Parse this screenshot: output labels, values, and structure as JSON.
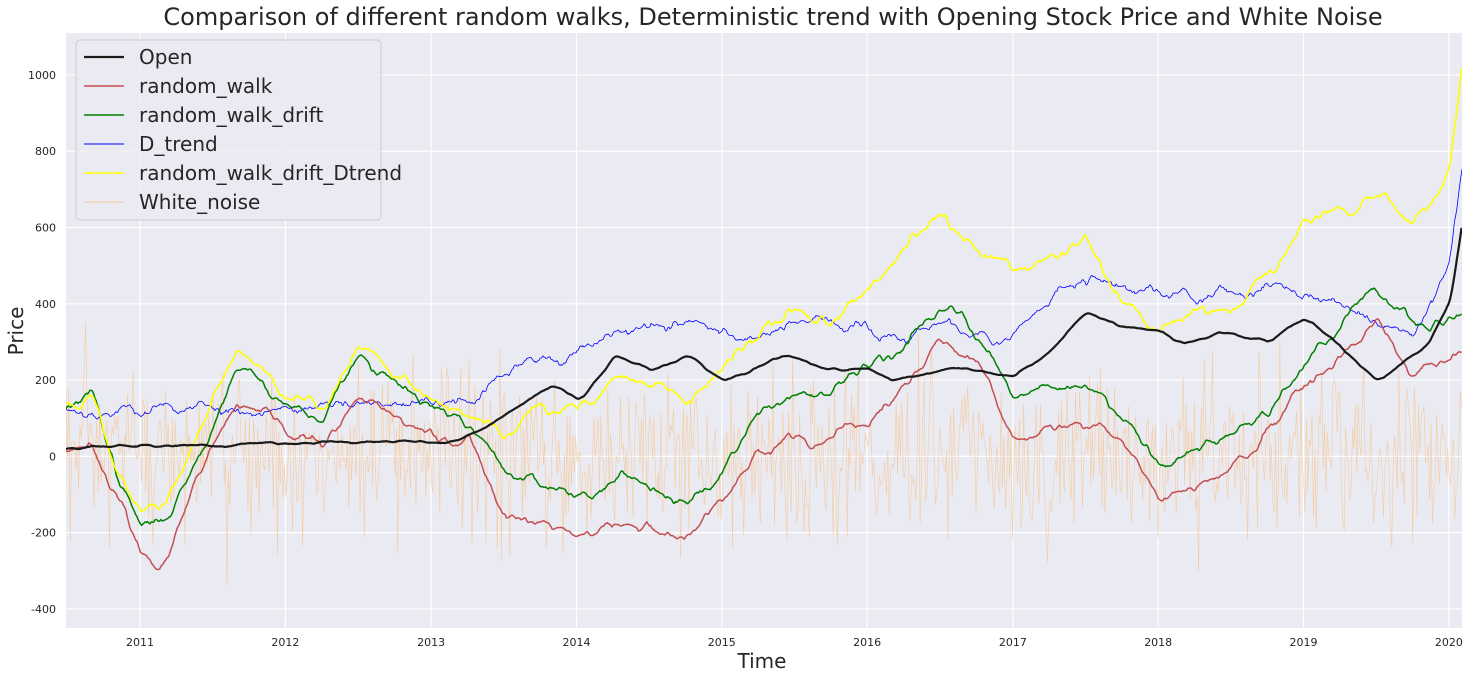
{
  "chart_data": {
    "type": "line",
    "title": "Comparison of different random walks, Deterministic trend with Opening Stock Price and White Noise",
    "xlabel": "Time",
    "ylabel": "Price",
    "x_range": [
      "2010-06-29",
      "2020-02-03"
    ],
    "ylim": [
      -450,
      1110
    ],
    "x_ticks": [
      "2011",
      "2012",
      "2013",
      "2014",
      "2015",
      "2016",
      "2017",
      "2018",
      "2019",
      "2020"
    ],
    "y_ticks": [
      -400,
      -200,
      0,
      200,
      400,
      600,
      800,
      1000
    ],
    "grid": true,
    "background": "#eaeaf2",
    "legend_position": "top-left",
    "series": [
      {
        "name": "Open",
        "color": "#1a1a1a",
        "points": [
          [
            "2010-06-29",
            20
          ],
          [
            "2010-10-01",
            25
          ],
          [
            "2010-11-01",
            35
          ],
          [
            "2011-01-01",
            30
          ],
          [
            "2011-06-01",
            28
          ],
          [
            "2012-01-01",
            35
          ],
          [
            "2012-06-01",
            38
          ],
          [
            "2013-01-01",
            35
          ],
          [
            "2013-03-15",
            45
          ],
          [
            "2013-06-01",
            90
          ],
          [
            "2013-09-01",
            160
          ],
          [
            "2013-11-01",
            190
          ],
          [
            "2014-01-01",
            150
          ],
          [
            "2014-04-01",
            260
          ],
          [
            "2014-07-01",
            220
          ],
          [
            "2014-10-01",
            270
          ],
          [
            "2015-01-01",
            200
          ],
          [
            "2015-03-01",
            220
          ],
          [
            "2015-06-01",
            270
          ],
          [
            "2015-09-01",
            230
          ],
          [
            "2016-01-01",
            230
          ],
          [
            "2016-03-01",
            200
          ],
          [
            "2016-06-01",
            220
          ],
          [
            "2016-09-01",
            230
          ],
          [
            "2017-01-01",
            210
          ],
          [
            "2017-04-01",
            280
          ],
          [
            "2017-07-01",
            380
          ],
          [
            "2017-10-01",
            340
          ],
          [
            "2018-01-01",
            330
          ],
          [
            "2018-03-01",
            290
          ],
          [
            "2018-06-01",
            330
          ],
          [
            "2018-10-01",
            300
          ],
          [
            "2019-01-01",
            360
          ],
          [
            "2019-04-01",
            290
          ],
          [
            "2019-07-01",
            200
          ],
          [
            "2019-10-01",
            260
          ],
          [
            "2019-11-15",
            310
          ],
          [
            "2020-01-01",
            420
          ],
          [
            "2020-02-03",
            660
          ]
        ]
      },
      {
        "name": "random_walk",
        "color": "#c44e52",
        "points": [
          [
            "2010-06-29",
            20
          ],
          [
            "2010-09-01",
            40
          ],
          [
            "2010-11-01",
            -100
          ],
          [
            "2011-01-01",
            -260
          ],
          [
            "2011-03-01",
            -280
          ],
          [
            "2011-06-01",
            -50
          ],
          [
            "2011-09-01",
            130
          ],
          [
            "2012-01-01",
            60
          ],
          [
            "2012-04-01",
            30
          ],
          [
            "2012-07-01",
            140
          ],
          [
            "2012-10-01",
            90
          ],
          [
            "2013-01-01",
            60
          ],
          [
            "2013-04-01",
            50
          ],
          [
            "2013-07-01",
            -150
          ],
          [
            "2013-10-01",
            -180
          ],
          [
            "2014-01-01",
            -210
          ],
          [
            "2014-04-01",
            -180
          ],
          [
            "2014-07-01",
            -190
          ],
          [
            "2014-10-01",
            -220
          ],
          [
            "2015-01-01",
            -120
          ],
          [
            "2015-04-01",
            20
          ],
          [
            "2015-07-01",
            60
          ],
          [
            "2015-10-01",
            40
          ],
          [
            "2016-01-01",
            90
          ],
          [
            "2016-04-01",
            180
          ],
          [
            "2016-07-01",
            310
          ],
          [
            "2016-10-01",
            220
          ],
          [
            "2017-01-01",
            40
          ],
          [
            "2017-04-01",
            70
          ],
          [
            "2017-07-01",
            60
          ],
          [
            "2017-10-01",
            50
          ],
          [
            "2018-01-01",
            -100
          ],
          [
            "2018-04-01",
            -90
          ],
          [
            "2018-07-01",
            -40
          ],
          [
            "2018-10-01",
            50
          ],
          [
            "2019-01-01",
            180
          ],
          [
            "2019-04-01",
            220
          ],
          [
            "2019-07-01",
            340
          ],
          [
            "2019-10-01",
            200
          ],
          [
            "2020-02-03",
            270
          ]
        ]
      },
      {
        "name": "random_walk_drift",
        "color": "#008000",
        "points": [
          [
            "2010-06-29",
            130
          ],
          [
            "2010-09-01",
            160
          ],
          [
            "2010-11-01",
            -50
          ],
          [
            "2011-01-01",
            -190
          ],
          [
            "2011-03-01",
            -170
          ],
          [
            "2011-06-01",
            20
          ],
          [
            "2011-09-01",
            250
          ],
          [
            "2012-01-01",
            140
          ],
          [
            "2012-04-01",
            100
          ],
          [
            "2012-07-01",
            260
          ],
          [
            "2012-10-01",
            180
          ],
          [
            "2013-01-01",
            120
          ],
          [
            "2013-04-01",
            80
          ],
          [
            "2013-07-01",
            -40
          ],
          [
            "2013-10-01",
            -70
          ],
          [
            "2014-01-01",
            -100
          ],
          [
            "2014-04-01",
            -60
          ],
          [
            "2014-07-01",
            -70
          ],
          [
            "2014-10-01",
            -110
          ],
          [
            "2015-01-01",
            -20
          ],
          [
            "2015-04-01",
            130
          ],
          [
            "2015-07-01",
            170
          ],
          [
            "2015-10-01",
            150
          ],
          [
            "2016-01-01",
            230
          ],
          [
            "2016-04-01",
            300
          ],
          [
            "2016-07-01",
            410
          ],
          [
            "2016-10-01",
            330
          ],
          [
            "2017-01-01",
            160
          ],
          [
            "2017-04-01",
            200
          ],
          [
            "2017-07-01",
            180
          ],
          [
            "2017-10-01",
            120
          ],
          [
            "2018-01-01",
            0
          ],
          [
            "2018-04-01",
            20
          ],
          [
            "2018-07-01",
            50
          ],
          [
            "2018-10-01",
            120
          ],
          [
            "2019-01-01",
            260
          ],
          [
            "2019-04-01",
            340
          ],
          [
            "2019-07-01",
            460
          ],
          [
            "2019-10-01",
            330
          ],
          [
            "2020-02-03",
            360
          ]
        ]
      },
      {
        "name": "D_trend",
        "color": "#0000ff",
        "points": [
          [
            "2010-06-29",
            120
          ],
          [
            "2011-01-01",
            125
          ],
          [
            "2011-06-01",
            125
          ],
          [
            "2012-01-01",
            130
          ],
          [
            "2012-06-01",
            125
          ],
          [
            "2013-01-01",
            130
          ],
          [
            "2013-04-01",
            150
          ],
          [
            "2013-08-01",
            230
          ],
          [
            "2013-12-01",
            260
          ],
          [
            "2014-04-01",
            340
          ],
          [
            "2014-10-01",
            350
          ],
          [
            "2015-03-01",
            310
          ],
          [
            "2015-07-01",
            360
          ],
          [
            "2015-11-01",
            340
          ],
          [
            "2016-03-01",
            300
          ],
          [
            "2016-07-01",
            350
          ],
          [
            "2016-11-01",
            300
          ],
          [
            "2017-03-01",
            380
          ],
          [
            "2017-07-01",
            470
          ],
          [
            "2017-11-01",
            440
          ],
          [
            "2018-03-01",
            440
          ],
          [
            "2018-07-01",
            420
          ],
          [
            "2018-11-01",
            450
          ],
          [
            "2019-03-01",
            410
          ],
          [
            "2019-07-01",
            360
          ],
          [
            "2019-10-01",
            310
          ],
          [
            "2020-01-01",
            500
          ],
          [
            "2020-02-03",
            760
          ]
        ]
      },
      {
        "name": "random_walk_drift_Dtrend",
        "color": "#ffff00",
        "points": [
          [
            "2010-06-29",
            140
          ],
          [
            "2010-09-01",
            170
          ],
          [
            "2010-11-01",
            -40
          ],
          [
            "2011-01-01",
            -150
          ],
          [
            "2011-03-01",
            -130
          ],
          [
            "2011-06-01",
            60
          ],
          [
            "2011-09-01",
            270
          ],
          [
            "2012-01-01",
            170
          ],
          [
            "2012-04-01",
            130
          ],
          [
            "2012-07-01",
            290
          ],
          [
            "2012-10-01",
            210
          ],
          [
            "2013-01-01",
            150
          ],
          [
            "2013-04-01",
            110
          ],
          [
            "2013-07-01",
            60
          ],
          [
            "2013-10-01",
            150
          ],
          [
            "2014-01-01",
            130
          ],
          [
            "2014-04-01",
            200
          ],
          [
            "2014-07-01",
            190
          ],
          [
            "2014-10-01",
            150
          ],
          [
            "2015-01-01",
            220
          ],
          [
            "2015-04-01",
            310
          ],
          [
            "2015-07-01",
            390
          ],
          [
            "2015-10-01",
            350
          ],
          [
            "2016-01-01",
            430
          ],
          [
            "2016-04-01",
            520
          ],
          [
            "2016-07-01",
            620
          ],
          [
            "2016-10-01",
            530
          ],
          [
            "2017-01-01",
            480
          ],
          [
            "2017-04-01",
            520
          ],
          [
            "2017-07-01",
            560
          ],
          [
            "2017-10-01",
            400
          ],
          [
            "2018-01-01",
            330
          ],
          [
            "2018-04-01",
            360
          ],
          [
            "2018-07-01",
            380
          ],
          [
            "2018-10-01",
            470
          ],
          [
            "2019-01-01",
            620
          ],
          [
            "2019-04-01",
            630
          ],
          [
            "2019-07-01",
            680
          ],
          [
            "2019-10-01",
            620
          ],
          [
            "2020-01-01",
            760
          ],
          [
            "2020-02-03",
            1040
          ]
        ]
      },
      {
        "name": "White_noise",
        "color": "#f5c99a",
        "points": [
          [
            "2010-06-29",
            0
          ],
          [
            "2020-02-03",
            0
          ]
        ]
      }
    ]
  }
}
